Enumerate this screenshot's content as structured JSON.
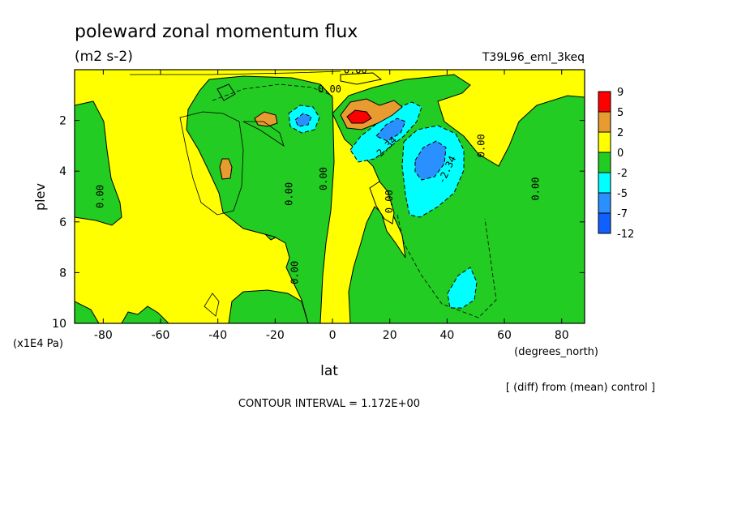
{
  "chart_data": {
    "type": "contour",
    "title": "poleward zonal momentum flux",
    "units": "(m2 s-2)",
    "experiment": "T39L96_eml_3keq",
    "xlabel": "lat",
    "x_unit": "(degrees_north)",
    "ylabel": "plev",
    "y_unit": "(x1E4 Pa)",
    "xlim": [
      -90,
      88
    ],
    "ylim": [
      10,
      0
    ],
    "x_ticks": [
      -80,
      -60,
      -40,
      -20,
      0,
      20,
      40,
      60,
      80
    ],
    "y_ticks": [
      2,
      4,
      6,
      8,
      10
    ],
    "note": "[ (diff) from (mean) control ]",
    "contour_interval": "CONTOUR INTERVAL = 1.172E+00",
    "colorbar": {
      "labels": [
        "9",
        "5",
        "2",
        "0",
        "-2",
        "-5",
        "-7",
        "-12"
      ],
      "colors": [
        "#ff0000",
        "#e89b30",
        "#ffff00",
        "#22cc22",
        "#00ffff",
        "#2a90ff",
        "#1060ff"
      ]
    },
    "contour_labels": [
      {
        "text": "0.00",
        "lat": 8,
        "plev": 0.15,
        "rot": 0
      },
      {
        "text": "0.00",
        "lat": -1,
        "plev": 0.9,
        "rot": 0
      },
      {
        "text": "0.00",
        "lat": -80,
        "plev": 5.0,
        "rot": -90
      },
      {
        "text": "0.00",
        "lat": -14,
        "plev": 4.9,
        "rot": -90
      },
      {
        "text": "0.00",
        "lat": -2,
        "plev": 4.3,
        "rot": -90
      },
      {
        "text": "0.00",
        "lat": 21,
        "plev": 5.2,
        "rot": -90
      },
      {
        "text": "0.00",
        "lat": 53,
        "plev": 3.0,
        "rot": -90
      },
      {
        "text": "0.00",
        "lat": 72,
        "plev": 4.7,
        "rot": -90
      },
      {
        "text": "0.00",
        "lat": -12,
        "plev": 8.0,
        "rot": -90
      },
      {
        "text": "-2.34",
        "lat": 19,
        "plev": 3.2,
        "rot": -45
      },
      {
        "text": "-2.34",
        "lat": 41,
        "plev": 4.0,
        "rot": -65
      }
    ]
  }
}
